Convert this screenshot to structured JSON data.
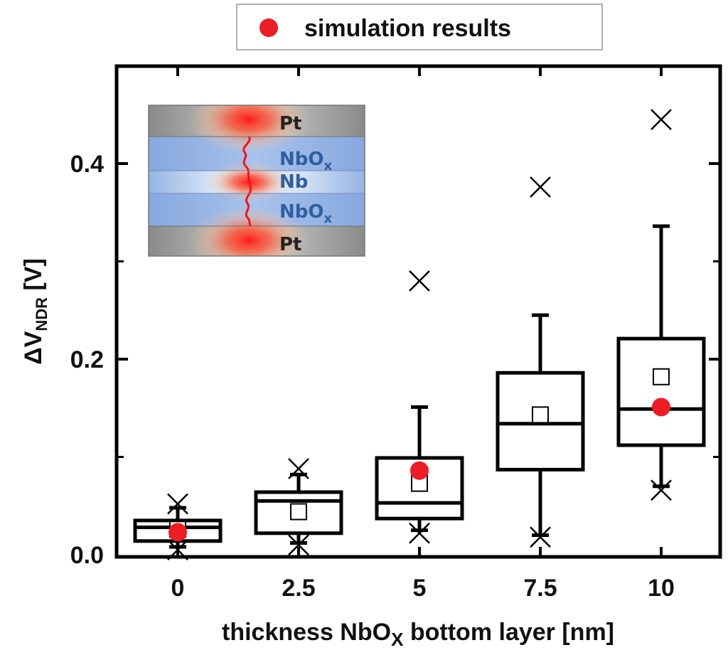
{
  "chart_data": {
    "type": "box",
    "xlabel_main": "thickness NbO",
    "xlabel_sub": "X",
    "xlabel_tail": " bottom layer [nm]",
    "ylabel_main": "ΔV",
    "ylabel_sub": "NDR",
    "ylabel_tail": " [V]",
    "categories": [
      "0",
      "2.5",
      "5",
      "7.5",
      "10"
    ],
    "yticks": [
      "0.0",
      "0.2",
      "0.4"
    ],
    "ylim": [
      0,
      0.5
    ],
    "boxes": [
      {
        "category": "0",
        "min": 0.008,
        "q1": 0.014,
        "median": 0.028,
        "q3": 0.035,
        "max": 0.048,
        "mean": 0.026,
        "outlier_low": 0.005,
        "outlier_high": 0.052
      },
      {
        "category": "2.5",
        "min": 0.012,
        "q1": 0.022,
        "median": 0.055,
        "q3": 0.064,
        "max": 0.082,
        "mean": 0.044,
        "outlier_low": 0.01,
        "outlier_high": 0.088
      },
      {
        "category": "5",
        "min": 0.025,
        "q1": 0.037,
        "median": 0.053,
        "q3": 0.099,
        "max": 0.151,
        "mean": 0.073,
        "outlier_low": 0.022,
        "outlier_high": 0.28
      },
      {
        "category": "7.5",
        "min": 0.02,
        "q1": 0.087,
        "median": 0.134,
        "q3": 0.186,
        "max": 0.245,
        "mean": 0.143,
        "outlier_low": 0.018,
        "outlier_high": 0.376
      },
      {
        "category": "10",
        "min": 0.07,
        "q1": 0.112,
        "median": 0.149,
        "q3": 0.221,
        "max": 0.336,
        "mean": 0.182,
        "outlier_low": 0.066,
        "outlier_high": 0.445
      }
    ],
    "simulation": {
      "name": "simulation results",
      "color": "#ee1c25",
      "points": [
        {
          "category": "0",
          "value": 0.023
        },
        {
          "category": "5",
          "value": 0.086
        },
        {
          "category": "10",
          "value": 0.151
        }
      ]
    },
    "legend_position": "top-center",
    "inset": {
      "labels": [
        {
          "main": "Pt",
          "sub": ""
        },
        {
          "main": "NbO",
          "sub": "x"
        },
        {
          "main": "Nb",
          "sub": ""
        },
        {
          "main": "NbO",
          "sub": "x"
        },
        {
          "main": "Pt",
          "sub": ""
        }
      ],
      "pt_color": "#8f8f8f",
      "oxide_color": "#8caee2",
      "filament_color": "#ff1010"
    }
  }
}
